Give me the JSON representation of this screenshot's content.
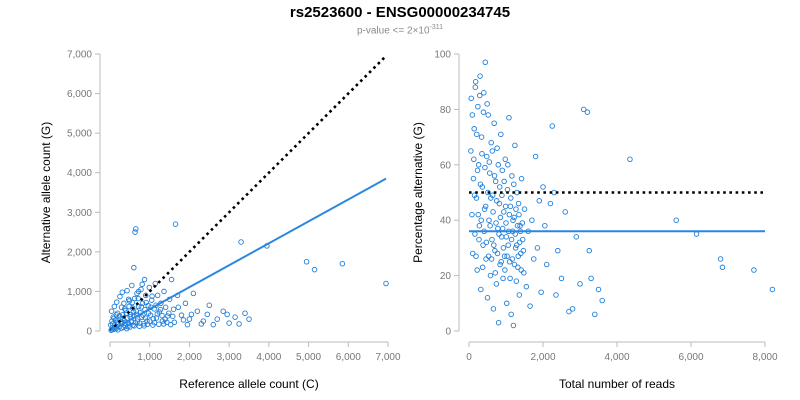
{
  "header": {
    "title": "rs2523600 - ENSG00000234745",
    "subtitle_prefix": "p-value <= 2×10",
    "subtitle_exp": "-311"
  },
  "colors": {
    "points": "#1f7fd9",
    "fit": "#2b86e0",
    "reference": "#000000"
  },
  "chart_data": [
    {
      "type": "scatter",
      "xlabel": "Reference allele count (C)",
      "ylabel": "Alternative allele count (G)",
      "xlim": [
        0,
        7000
      ],
      "ylim": [
        0,
        7000
      ],
      "xticks": [
        0,
        1000,
        2000,
        3000,
        4000,
        5000,
        6000,
        7000
      ],
      "yticks": [
        0,
        1000,
        2000,
        3000,
        4000,
        5000,
        6000,
        7000
      ],
      "xtick_labels": [
        "0",
        "1,000",
        "2,000",
        "3,000",
        "4,000",
        "5,000",
        "6,000",
        "7,000"
      ],
      "ytick_labels": [
        "0",
        "1,000",
        "2,000",
        "3,000",
        "4,000",
        "5,000",
        "6,000",
        "7,000"
      ],
      "grid": false,
      "lines": [
        {
          "style": "dotted",
          "color": "#000000",
          "x": [
            0,
            6950
          ],
          "y": [
            0,
            6950
          ]
        },
        {
          "style": "solid",
          "color": "#2b86e0",
          "x": [
            0,
            6950
          ],
          "y": [
            0,
            3850
          ]
        }
      ],
      "points": [
        [
          30,
          20
        ],
        [
          60,
          90
        ],
        [
          90,
          40
        ],
        [
          120,
          150
        ],
        [
          150,
          60
        ],
        [
          180,
          220
        ],
        [
          200,
          30
        ],
        [
          230,
          120
        ],
        [
          260,
          300
        ],
        [
          280,
          70
        ],
        [
          300,
          180
        ],
        [
          320,
          410
        ],
        [
          340,
          90
        ],
        [
          360,
          260
        ],
        [
          380,
          140
        ],
        [
          400,
          520
        ],
        [
          420,
          60
        ],
        [
          440,
          330
        ],
        [
          460,
          200
        ],
        [
          480,
          620
        ],
        [
          500,
          100
        ],
        [
          520,
          420
        ],
        [
          540,
          250
        ],
        [
          560,
          720
        ],
        [
          580,
          150
        ],
        [
          600,
          380
        ],
        [
          620,
          820
        ],
        [
          640,
          210
        ],
        [
          660,
          500
        ],
        [
          680,
          950
        ],
        [
          700,
          300
        ],
        [
          720,
          620
        ],
        [
          740,
          120
        ],
        [
          760,
          460
        ],
        [
          780,
          1050
        ],
        [
          800,
          350
        ],
        [
          820,
          700
        ],
        [
          850,
          180
        ],
        [
          880,
          540
        ],
        [
          900,
          900
        ],
        [
          930,
          250
        ],
        [
          960,
          640
        ],
        [
          990,
          1100
        ],
        [
          1020,
          400
        ],
        [
          1050,
          780
        ],
        [
          1080,
          150
        ],
        [
          1110,
          560
        ],
        [
          1140,
          1200
        ],
        [
          1170,
          330
        ],
        [
          1200,
          900
        ],
        [
          1240,
          480
        ],
        [
          1280,
          700
        ],
        [
          1320,
          250
        ],
        [
          1360,
          1000
        ],
        [
          1400,
          600
        ],
        [
          1450,
          380
        ],
        [
          1500,
          800
        ],
        [
          1550,
          1300
        ],
        [
          1600,
          550
        ],
        [
          1650,
          2700
        ],
        [
          1700,
          900
        ],
        [
          1800,
          400
        ],
        [
          1900,
          700
        ],
        [
          2000,
          300
        ],
        [
          2100,
          950
        ],
        [
          2200,
          500
        ],
        [
          2350,
          250
        ],
        [
          2500,
          650
        ],
        [
          2700,
          300
        ],
        [
          2850,
          500
        ],
        [
          3000,
          200
        ],
        [
          3150,
          350
        ],
        [
          3300,
          2250
        ],
        [
          3400,
          450
        ],
        [
          3950,
          2150
        ],
        [
          4950,
          1750
        ],
        [
          5150,
          1550
        ],
        [
          5850,
          1700
        ],
        [
          6950,
          1200
        ],
        [
          40,
          500
        ],
        [
          80,
          350
        ],
        [
          110,
          620
        ],
        [
          140,
          280
        ],
        [
          170,
          730
        ],
        [
          190,
          450
        ],
        [
          250,
          870
        ],
        [
          310,
          980
        ],
        [
          370,
          560
        ],
        [
          430,
          1020
        ],
        [
          490,
          760
        ],
        [
          550,
          1150
        ],
        [
          590,
          480
        ],
        [
          630,
          2500
        ],
        [
          600,
          1600
        ],
        [
          650,
          2580
        ],
        [
          720,
          1000
        ],
        [
          810,
          1180
        ],
        [
          870,
          1300
        ],
        [
          20,
          150
        ],
        [
          50,
          250
        ],
        [
          70,
          180
        ],
        [
          100,
          320
        ],
        [
          130,
          80
        ],
        [
          160,
          410
        ],
        [
          210,
          170
        ],
        [
          240,
          380
        ],
        [
          270,
          230
        ],
        [
          290,
          600
        ],
        [
          330,
          320
        ],
        [
          350,
          700
        ],
        [
          390,
          200
        ],
        [
          410,
          450
        ],
        [
          450,
          110
        ],
        [
          470,
          800
        ],
        [
          510,
          360
        ],
        [
          530,
          230
        ],
        [
          570,
          580
        ],
        [
          610,
          130
        ],
        [
          670,
          420
        ],
        [
          690,
          250
        ],
        [
          710,
          820
        ],
        [
          750,
          200
        ],
        [
          790,
          610
        ],
        [
          830,
          400
        ],
        [
          860,
          130
        ],
        [
          890,
          330
        ],
        [
          910,
          720
        ],
        [
          940,
          170
        ],
        [
          970,
          450
        ],
        [
          1000,
          250
        ],
        [
          1030,
          600
        ],
        [
          1060,
          880
        ],
        [
          1090,
          310
        ],
        [
          1120,
          210
        ],
        [
          1160,
          650
        ],
        [
          1190,
          430
        ],
        [
          1230,
          170
        ],
        [
          1270,
          540
        ],
        [
          1310,
          390
        ],
        [
          1350,
          180
        ],
        [
          1390,
          300
        ],
        [
          1430,
          220
        ],
        [
          1480,
          450
        ],
        [
          1530,
          160
        ],
        [
          1580,
          370
        ],
        [
          1620,
          220
        ],
        [
          1720,
          600
        ],
        [
          1850,
          280
        ],
        [
          1950,
          160
        ],
        [
          2050,
          420
        ],
        [
          2300,
          180
        ],
        [
          2450,
          420
        ],
        [
          2600,
          160
        ],
        [
          2950,
          420
        ],
        [
          3250,
          180
        ],
        [
          3500,
          300
        ]
      ]
    },
    {
      "type": "scatter",
      "xlabel": "Total number of reads",
      "ylabel": "Percentage alternative (G)",
      "xlim": [
        0,
        8000
      ],
      "ylim": [
        0,
        100
      ],
      "xticks": [
        0,
        2000,
        4000,
        6000,
        8000
      ],
      "yticks": [
        0,
        20,
        40,
        60,
        80,
        100
      ],
      "xtick_labels": [
        "0",
        "2,000",
        "4,000",
        "6,000",
        "8,000"
      ],
      "ytick_labels": [
        "0",
        "20",
        "40",
        "60",
        "80",
        "100"
      ],
      "grid": false,
      "lines": [
        {
          "style": "dotted",
          "color": "#000000",
          "x": [
            0,
            8000
          ],
          "y": [
            50,
            50
          ]
        },
        {
          "style": "solid",
          "color": "#2b86e0",
          "x": [
            0,
            8000
          ],
          "y": [
            36,
            36
          ]
        }
      ],
      "points": [
        [
          50,
          65
        ],
        [
          80,
          42
        ],
        [
          100,
          28
        ],
        [
          120,
          55
        ],
        [
          140,
          73
        ],
        [
          160,
          35
        ],
        [
          180,
          90
        ],
        [
          200,
          48
        ],
        [
          220,
          22
        ],
        [
          240,
          81
        ],
        [
          260,
          60
        ],
        [
          280,
          38
        ],
        [
          300,
          92
        ],
        [
          320,
          15
        ],
        [
          340,
          70
        ],
        [
          360,
          52
        ],
        [
          380,
          31
        ],
        [
          400,
          86
        ],
        [
          420,
          44
        ],
        [
          440,
          97
        ],
        [
          460,
          26
        ],
        [
          480,
          63
        ],
        [
          500,
          12
        ],
        [
          520,
          78
        ],
        [
          540,
          40
        ],
        [
          560,
          57
        ],
        [
          580,
          20
        ],
        [
          600,
          68
        ],
        [
          620,
          33
        ],
        [
          640,
          49
        ],
        [
          660,
          8
        ],
        [
          680,
          75
        ],
        [
          700,
          29
        ],
        [
          720,
          54
        ],
        [
          740,
          17
        ],
        [
          760,
          66
        ],
        [
          780,
          37
        ],
        [
          800,
          3
        ],
        [
          820,
          46
        ],
        [
          840,
          24
        ],
        [
          860,
          71
        ],
        [
          880,
          34
        ],
        [
          900,
          58
        ],
        [
          920,
          19
        ],
        [
          940,
          43
        ],
        [
          960,
          27
        ],
        [
          980,
          62
        ],
        [
          1000,
          39
        ],
        [
          1020,
          10
        ],
        [
          1040,
          51
        ],
        [
          1060,
          31
        ],
        [
          1080,
          77
        ],
        [
          1100,
          25
        ],
        [
          1120,
          45
        ],
        [
          1140,
          6
        ],
        [
          1160,
          56
        ],
        [
          1180,
          36
        ],
        [
          1200,
          2
        ],
        [
          1220,
          41
        ],
        [
          1240,
          67
        ],
        [
          1260,
          30
        ],
        [
          1280,
          18
        ],
        [
          1300,
          50
        ],
        [
          1320,
          23
        ],
        [
          1340,
          46
        ],
        [
          1360,
          13
        ],
        [
          1380,
          38
        ],
        [
          1400,
          28
        ],
        [
          1420,
          55
        ],
        [
          1450,
          33
        ],
        [
          1480,
          21
        ],
        [
          1500,
          44
        ],
        [
          1550,
          16
        ],
        [
          1600,
          36
        ],
        [
          1650,
          9
        ],
        [
          1700,
          40
        ],
        [
          1750,
          26
        ],
        [
          1800,
          63
        ],
        [
          1850,
          30
        ],
        [
          1900,
          47
        ],
        [
          1950,
          14
        ],
        [
          2000,
          52
        ],
        [
          2050,
          38
        ],
        [
          2100,
          24
        ],
        [
          2200,
          46
        ],
        [
          2250,
          74
        ],
        [
          2300,
          50
        ],
        [
          2350,
          13
        ],
        [
          2400,
          29
        ],
        [
          2500,
          19
        ],
        [
          2600,
          43
        ],
        [
          2700,
          7
        ],
        [
          2800,
          8
        ],
        [
          2900,
          34
        ],
        [
          3000,
          17
        ],
        [
          3100,
          80
        ],
        [
          3200,
          79
        ],
        [
          3250,
          29
        ],
        [
          3300,
          19
        ],
        [
          3400,
          6
        ],
        [
          3500,
          15
        ],
        [
          3600,
          11
        ],
        [
          4350,
          62
        ],
        [
          5600,
          40
        ],
        [
          6150,
          35
        ],
        [
          6800,
          26
        ],
        [
          6850,
          23
        ],
        [
          7700,
          22
        ],
        [
          8200,
          15
        ],
        [
          60,
          84
        ],
        [
          90,
          78
        ],
        [
          130,
          62
        ],
        [
          150,
          49
        ],
        [
          170,
          88
        ],
        [
          190,
          27
        ],
        [
          210,
          71
        ],
        [
          230,
          58
        ],
        [
          250,
          42
        ],
        [
          270,
          33
        ],
        [
          290,
          85
        ],
        [
          310,
          53
        ],
        [
          330,
          40
        ],
        [
          350,
          64
        ],
        [
          370,
          23
        ],
        [
          390,
          79
        ],
        [
          410,
          36
        ],
        [
          430,
          59
        ],
        [
          450,
          45
        ],
        [
          470,
          32
        ],
        [
          490,
          82
        ],
        [
          510,
          50
        ],
        [
          530,
          27
        ],
        [
          550,
          61
        ],
        [
          570,
          38
        ],
        [
          590,
          48
        ],
        [
          610,
          26
        ],
        [
          630,
          65
        ],
        [
          650,
          43
        ],
        [
          670,
          31
        ],
        [
          690,
          56
        ],
        [
          710,
          21
        ],
        [
          730,
          39
        ],
        [
          750,
          47
        ],
        [
          770,
          28
        ],
        [
          790,
          60
        ],
        [
          810,
          35
        ],
        [
          830,
          52
        ],
        [
          850,
          41
        ],
        [
          870,
          25
        ],
        [
          890,
          49
        ],
        [
          910,
          37
        ],
        [
          930,
          30
        ],
        [
          950,
          54
        ],
        [
          970,
          22
        ],
        [
          990,
          45
        ],
        [
          1010,
          34
        ],
        [
          1030,
          27
        ],
        [
          1050,
          60
        ],
        [
          1070,
          36
        ],
        [
          1090,
          42
        ],
        [
          1110,
          19
        ],
        [
          1130,
          48
        ],
        [
          1150,
          33
        ],
        [
          1170,
          26
        ],
        [
          1190,
          40
        ],
        [
          1210,
          53
        ],
        [
          1230,
          24
        ],
        [
          1250,
          35
        ],
        [
          1270,
          44
        ],
        [
          1290,
          31
        ],
        [
          1310,
          38
        ],
        [
          1330,
          27
        ],
        [
          1350,
          42
        ],
        [
          1370,
          32
        ],
        [
          1390,
          36
        ],
        [
          1410,
          22
        ],
        [
          1440,
          39
        ],
        [
          1470,
          29
        ]
      ]
    }
  ]
}
